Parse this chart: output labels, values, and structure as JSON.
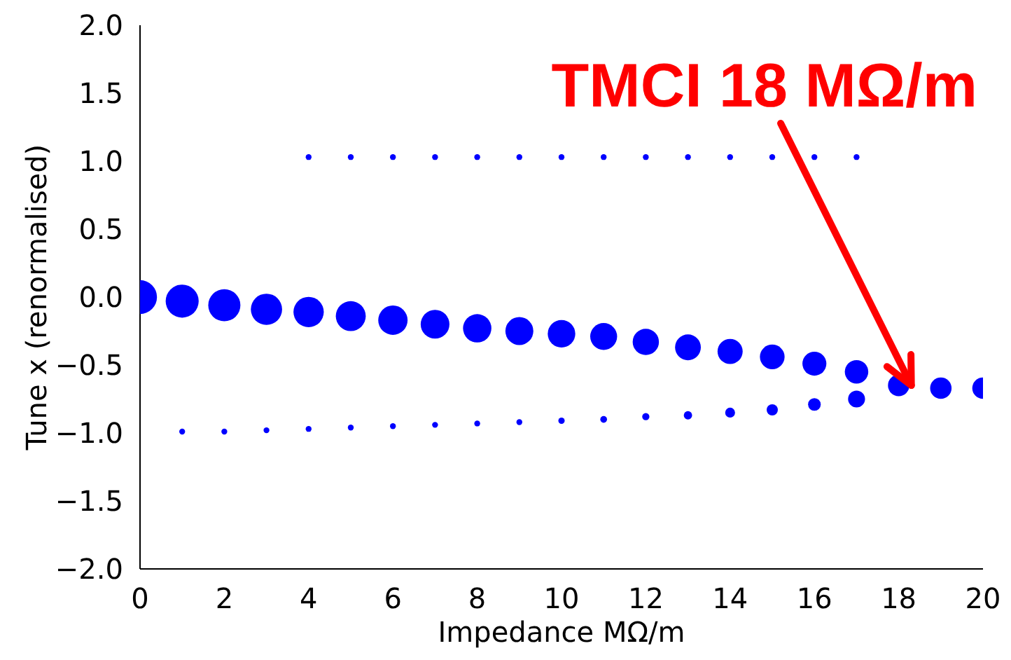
{
  "chart_data": {
    "type": "bubble",
    "xlabel": "Impedance MΩ/m",
    "ylabel": "Tune x (renormalised)",
    "xlim": [
      0,
      20
    ],
    "xticks": [
      0,
      2,
      4,
      6,
      8,
      10,
      12,
      14,
      16,
      18,
      20
    ],
    "ylim": [
      -2.0,
      2.0
    ],
    "yticks": [
      {
        "value": -2,
        "label": "−2.0"
      },
      {
        "value": -1.5,
        "label": "−1.5"
      },
      {
        "value": -1,
        "label": "−1.0"
      },
      {
        "value": -0.5,
        "label": "−0.5"
      },
      {
        "value": 0,
        "label": "0.0"
      },
      {
        "value": 0.5,
        "label": "0.5"
      },
      {
        "value": 1,
        "label": "1.0"
      },
      {
        "value": 1.5,
        "label": "1.5"
      },
      {
        "value": 2,
        "label": "2.0"
      }
    ],
    "marker": "circle",
    "annotations": [
      {
        "text": "TMCI 18 MΩ/m",
        "x": 18.3,
        "y": -0.65
      }
    ],
    "series": [
      {
        "color": "#0000ff",
        "x": [
          0,
          1,
          2,
          3,
          4,
          5,
          6,
          7,
          8,
          9,
          10,
          11,
          12,
          13,
          14,
          15,
          16,
          17,
          18,
          19,
          20
        ],
        "values": [
          0.0,
          -0.03,
          -0.06,
          -0.09,
          -0.11,
          -0.14,
          -0.17,
          -0.2,
          -0.23,
          -0.25,
          -0.27,
          -0.29,
          -0.33,
          -0.37,
          -0.4,
          -0.44,
          -0.49,
          -0.55,
          -0.65,
          -0.67,
          -0.67
        ],
        "sizes": [
          1,
          0.95,
          0.9,
          0.85,
          0.8,
          0.78,
          0.75,
          0.72,
          0.7,
          0.68,
          0.66,
          0.63,
          0.6,
          0.58,
          0.55,
          0.53,
          0.5,
          0.48,
          0.4,
          0.4,
          0.4
        ]
      },
      {
        "color": "#0000ff",
        "x": [
          1,
          2,
          3,
          4,
          5,
          6,
          7,
          8,
          9,
          10,
          11,
          12,
          13,
          14,
          15,
          16,
          17
        ],
        "values": [
          -0.99,
          -0.99,
          -0.98,
          -0.97,
          -0.96,
          -0.95,
          -0.94,
          -0.93,
          -0.92,
          -0.91,
          -0.9,
          -0.88,
          -0.87,
          -0.85,
          -0.83,
          -0.79,
          -0.75
        ],
        "sizes": [
          0.03,
          0.03,
          0.03,
          0.03,
          0.03,
          0.03,
          0.03,
          0.03,
          0.03,
          0.035,
          0.04,
          0.045,
          0.06,
          0.085,
          0.11,
          0.14,
          0.25
        ]
      },
      {
        "color": "#0000ff",
        "x": [
          4,
          5,
          6,
          7,
          8,
          9,
          10,
          11,
          12,
          13,
          14,
          15,
          16,
          17
        ],
        "values": [
          1.03,
          1.03,
          1.03,
          1.03,
          1.03,
          1.03,
          1.03,
          1.03,
          1.03,
          1.03,
          1.03,
          1.03,
          1.03,
          1.03
        ],
        "sizes": [
          0.03,
          0.03,
          0.03,
          0.03,
          0.03,
          0.03,
          0.03,
          0.03,
          0.03,
          0.03,
          0.03,
          0.03,
          0.03,
          0.03
        ]
      }
    ]
  }
}
